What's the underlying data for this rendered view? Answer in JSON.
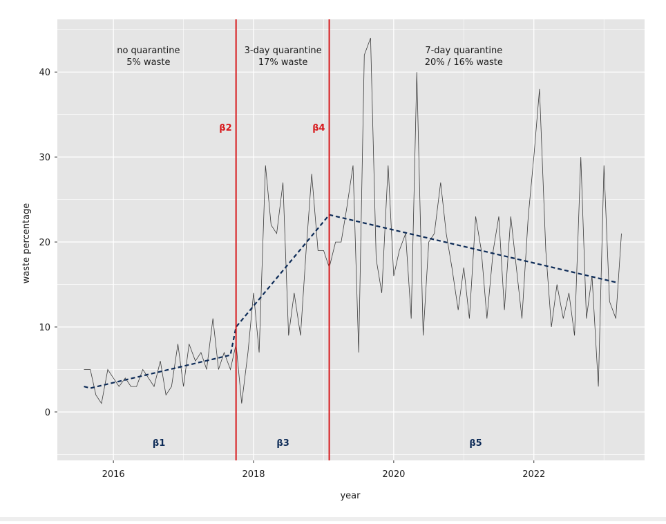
{
  "colors": {
    "panel_bg": "#e5e5e5",
    "grid": "#ffffff",
    "series_line": "#3a3a3a",
    "trend_line": "#0d2b57",
    "breakpoint_line": "#d7191c",
    "breakpoint_label": "#d7191c",
    "segment_label": "#0d2b57",
    "text": "#1a1a1a"
  },
  "chart_data": {
    "type": "line",
    "title": "",
    "xlabel": "year",
    "ylabel": "waste percentage",
    "xlim": [
      2015.2,
      2023.58
    ],
    "ylim": [
      -5.7,
      46.2
    ],
    "x_ticks": [
      2016,
      2018,
      2020,
      2022
    ],
    "x_tick_labels": [
      "2016",
      "2018",
      "2020",
      "2022"
    ],
    "y_ticks": [
      0,
      10,
      20,
      30,
      40
    ],
    "y_tick_labels": [
      "0",
      "10",
      "20",
      "30",
      "40"
    ],
    "grid": true,
    "series": [
      {
        "style": "solid-thin",
        "x": [
          2015.58,
          2015.67,
          2015.75,
          2015.83,
          2015.92,
          2016.0,
          2016.08,
          2016.17,
          2016.25,
          2016.33,
          2016.42,
          2016.5,
          2016.58,
          2016.67,
          2016.75,
          2016.83,
          2016.92,
          2017.0,
          2017.08,
          2017.17,
          2017.25,
          2017.33,
          2017.42,
          2017.5,
          2017.58,
          2017.67,
          2017.75,
          2017.83,
          2017.92,
          2018.0,
          2018.08,
          2018.17,
          2018.25,
          2018.33,
          2018.42,
          2018.5,
          2018.58,
          2018.67,
          2018.75,
          2018.83,
          2018.92,
          2019.0,
          2019.08,
          2019.17,
          2019.25,
          2019.33,
          2019.42,
          2019.5,
          2019.58,
          2019.67,
          2019.75,
          2019.83,
          2019.92,
          2020.0,
          2020.08,
          2020.17,
          2020.25,
          2020.33,
          2020.42,
          2020.5,
          2020.58,
          2020.67,
          2020.75,
          2020.83,
          2020.92,
          2021.0,
          2021.08,
          2021.17,
          2021.25,
          2021.33,
          2021.42,
          2021.5,
          2021.58,
          2021.67,
          2021.75,
          2021.83,
          2021.92,
          2022.0,
          2022.08,
          2022.17,
          2022.25,
          2022.33,
          2022.42,
          2022.5,
          2022.58,
          2022.67,
          2022.75,
          2022.83,
          2022.92,
          2023.0,
          2023.08,
          2023.17,
          2023.25
        ],
        "y": [
          5,
          5,
          2,
          1,
          5,
          4,
          3,
          4,
          3,
          3,
          5,
          4,
          3,
          6,
          2,
          3,
          8,
          3,
          8,
          6,
          7,
          5,
          11,
          5,
          7,
          5,
          8,
          1,
          7,
          14,
          7,
          29,
          22,
          21,
          27,
          9,
          14,
          9,
          19,
          28,
          19,
          19,
          17,
          20,
          20,
          24,
          29,
          7,
          42,
          44,
          18,
          14,
          29,
          16,
          19,
          21,
          11,
          40,
          9,
          20,
          21,
          27,
          21,
          17,
          12,
          17,
          11,
          23,
          19,
          11,
          19,
          23,
          12,
          23,
          17,
          11,
          23,
          30,
          38,
          19,
          10,
          15,
          11,
          14,
          9,
          30,
          11,
          16,
          3,
          29,
          13,
          11,
          21
        ]
      },
      {
        "style": "dashed-trend",
        "x": [
          2015.58,
          2015.67,
          2017.67,
          2017.75,
          2019.08,
          2023.2
        ],
        "y": [
          3.0,
          2.8,
          6.7,
          10.0,
          23.2,
          15.2
        ]
      }
    ],
    "breakpoints": [
      {
        "x": 2017.75,
        "label": "β2"
      },
      {
        "x": 2019.08,
        "label": "β4"
      }
    ],
    "segment_labels": [
      {
        "x": 2016.65,
        "label": "β1"
      },
      {
        "x": 2018.42,
        "label": "β3"
      },
      {
        "x": 2021.17,
        "label": "β5"
      }
    ],
    "annotations": [
      {
        "x": 2016.5,
        "lines": [
          "no quarantine",
          "5% waste"
        ]
      },
      {
        "x": 2018.42,
        "lines": [
          "3-day quarantine",
          "17% waste"
        ]
      },
      {
        "x": 2021.0,
        "lines": [
          "7-day quarantine",
          "20% / 16% waste"
        ]
      }
    ]
  }
}
